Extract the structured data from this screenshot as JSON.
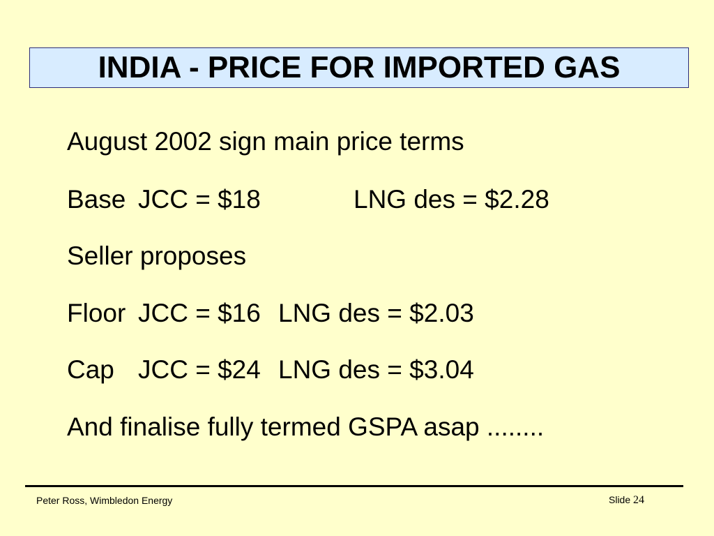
{
  "slide": {
    "title": "INDIA - PRICE FOR IMPORTED GAS",
    "line1": "August 2002 sign main price terms",
    "line2": {
      "label": "Base",
      "jcc": "JCC = $18",
      "lng": "LNG des = $2.28"
    },
    "line3": "Seller proposes",
    "line4": {
      "label": "Floor",
      "jcc": "JCC = $16",
      "lng": "LNG des = $2.03"
    },
    "line5": {
      "label": "Cap",
      "jcc": "JCC = $24",
      "lng": "LNG des = $3.04"
    },
    "line6": "And finalise fully termed GSPA asap ........"
  },
  "footer": {
    "author": "Peter Ross, Wimbledon Energy",
    "slide_label": "Slide",
    "slide_number": "24"
  },
  "colors": {
    "background": "#ffffcc",
    "title_box": "#d8ecff",
    "title_border": "#2b2b7a"
  }
}
